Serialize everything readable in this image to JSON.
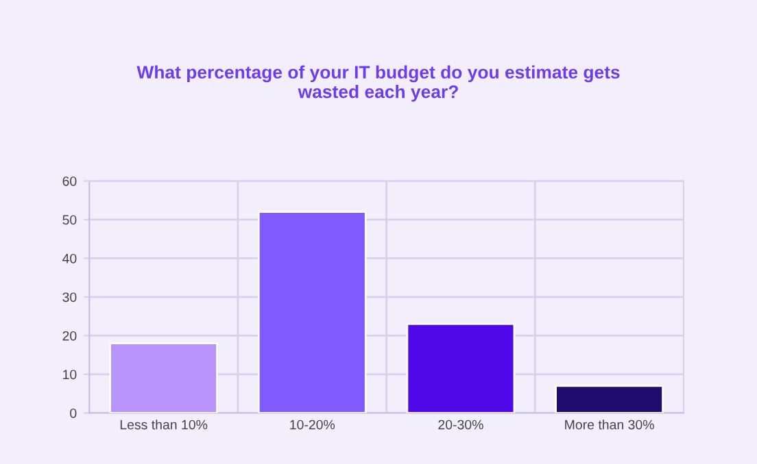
{
  "chart_data": {
    "type": "bar",
    "title": "What percentage of your IT budget do you estimate gets\nwasted each year?",
    "categories": [
      "Less than 10%",
      "10-20%",
      "20-30%",
      "More than 30%"
    ],
    "values": [
      18,
      52,
      23,
      7
    ],
    "colors": [
      "#b894fb",
      "#7f5afd",
      "#4f08e8",
      "#200c6c"
    ],
    "ylim": [
      0,
      60
    ],
    "yticks": [
      0,
      10,
      20,
      30,
      40,
      50,
      60
    ],
    "grid": true,
    "legend": false
  }
}
